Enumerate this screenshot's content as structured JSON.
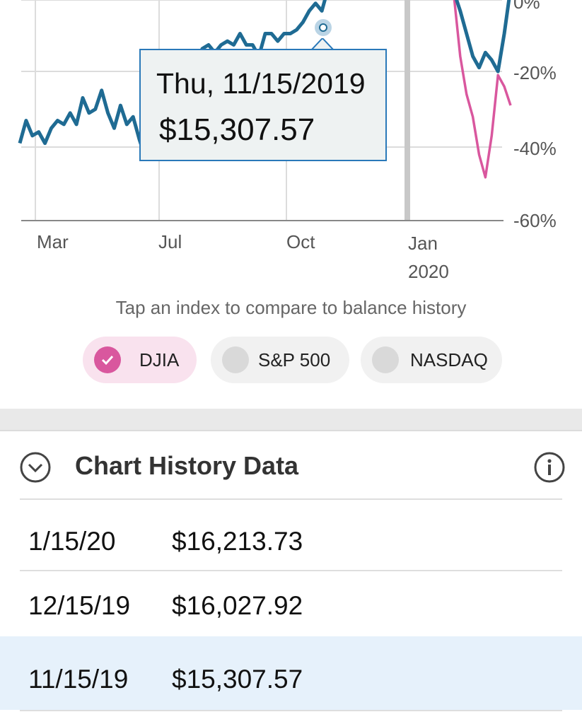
{
  "chart": {
    "type": "line",
    "x_ticks": [
      {
        "label": "Mar",
        "sub": ""
      },
      {
        "label": "Jul",
        "sub": ""
      },
      {
        "label": "Oct",
        "sub": ""
      },
      {
        "label": "Jan",
        "sub": "2020"
      }
    ],
    "y_ticks": [
      "0%",
      "-20%",
      "-40%",
      "-60%"
    ],
    "balance_color": "#1f6b93",
    "index_color": "#d9579e"
  },
  "chart_data": {
    "type": "line",
    "xlabel": "",
    "ylabel": "",
    "series": [
      {
        "values": [
          -39,
          -33,
          -37,
          -36,
          -39,
          -35,
          -33,
          -34,
          -31,
          -34,
          -27,
          -31,
          -30,
          -25,
          -31,
          -35,
          -29,
          -34,
          -32,
          -38,
          -43,
          -28,
          -29,
          -28,
          -26,
          -24,
          -22,
          -19,
          -18,
          -14,
          -13,
          -15,
          -13,
          -12,
          -13,
          -10,
          -13,
          -13,
          -16,
          -10,
          -10,
          -12,
          -10,
          -10,
          -9,
          -7,
          -4,
          -2,
          -4,
          2,
          4,
          5,
          3,
          2,
          0,
          3,
          5,
          2,
          0,
          2,
          4,
          3,
          1,
          4,
          5,
          2,
          4,
          6,
          3,
          1,
          -4,
          -10,
          -16,
          -19,
          -15,
          -17,
          -20,
          -10,
          2
        ]
      },
      {
        "values": [
          null,
          null,
          null,
          null,
          null,
          null,
          null,
          null,
          null,
          null,
          null,
          null,
          null,
          null,
          null,
          null,
          null,
          null,
          null,
          null,
          null,
          null,
          null,
          null,
          null,
          null,
          null,
          null,
          null,
          null,
          null,
          null,
          null,
          null,
          null,
          null,
          null,
          null,
          null,
          null,
          null,
          null,
          null,
          null,
          null,
          null,
          null,
          null,
          null,
          null,
          null,
          null,
          null,
          null,
          null,
          null,
          null,
          null,
          null,
          null,
          null,
          null,
          null,
          null,
          null,
          null,
          null,
          null,
          5,
          0,
          -16,
          -26,
          -32,
          -42,
          -48,
          -37,
          -21,
          -24,
          -29
        ]
      }
    ],
    "tooltip": {
      "date": "Thu, 11/15/2019",
      "value": "$15,307.57"
    }
  },
  "tooltip": {
    "date": "Thu, 11/15/2019",
    "value": "$15,307.57"
  },
  "compare_hint": "Tap an index to compare to balance history",
  "index_pills": [
    {
      "label": "DJIA",
      "selected": true
    },
    {
      "label": "S&P 500",
      "selected": false
    },
    {
      "label": "NASDAQ",
      "selected": false
    }
  ],
  "section": {
    "title": "Chart History Data",
    "expand_icon": "chevron-down-circle-icon",
    "info_icon": "info-icon"
  },
  "history_rows": [
    {
      "date": "1/15/20",
      "value": "$16,213.73",
      "highlighted": false
    },
    {
      "date": "12/15/19",
      "value": "$16,027.92",
      "highlighted": false
    },
    {
      "date": "11/15/19",
      "value": "$15,307.57",
      "highlighted": true
    }
  ],
  "colors": {
    "highlight_row": "#e6f1fb",
    "pill_selected": "#f9e2ee"
  }
}
